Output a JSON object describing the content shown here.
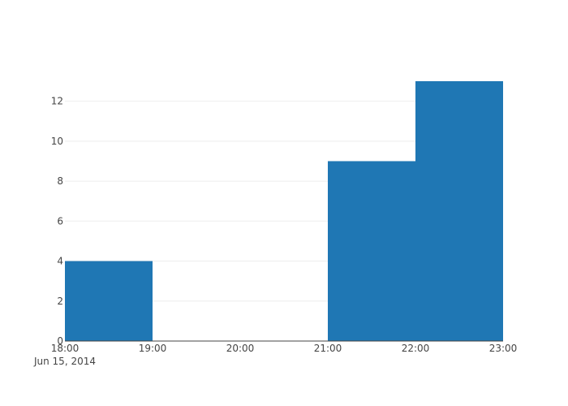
{
  "chart_data": {
    "type": "bar",
    "subtype": "histogram",
    "title": "",
    "xlabel": "",
    "ylabel": "",
    "x_ticks": [
      {
        "value": "18:00",
        "date": "Jun 15, 2014"
      },
      {
        "value": "19:00"
      },
      {
        "value": "20:00"
      },
      {
        "value": "21:00"
      },
      {
        "value": "22:00"
      },
      {
        "value": "23:00"
      }
    ],
    "y_ticks": [
      "0",
      "2",
      "4",
      "6",
      "8",
      "10",
      "12"
    ],
    "bins": [
      {
        "start": "18:00",
        "end": "19:00",
        "value": 4
      },
      {
        "start": "19:00",
        "end": "20:00",
        "value": 0
      },
      {
        "start": "20:00",
        "end": "21:00",
        "value": 0
      },
      {
        "start": "21:00",
        "end": "22:00",
        "value": 9
      },
      {
        "start": "22:00",
        "end": "23:00",
        "value": 13
      }
    ],
    "ylim": [
      0,
      13
    ],
    "grid": true,
    "legend": false,
    "bar_color": "#1f77b4"
  }
}
